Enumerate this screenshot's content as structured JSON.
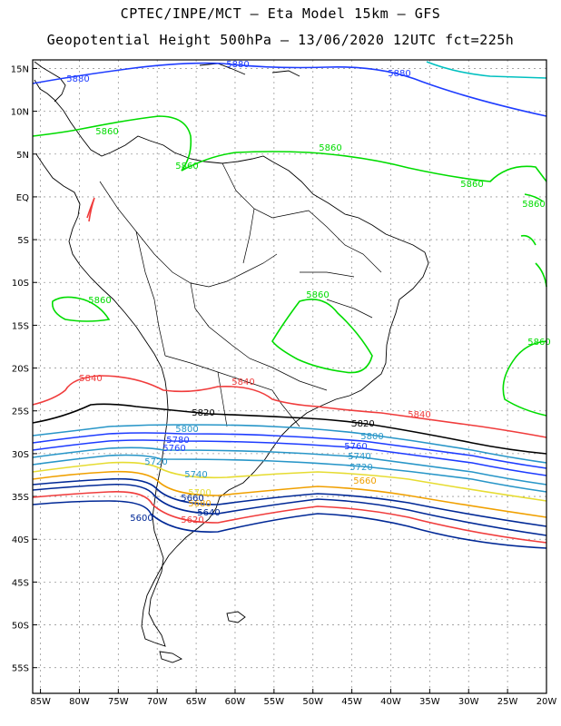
{
  "title": {
    "line1": "CPTEC/INPE/MCT –  Eta Model 15km – GFS",
    "line2": "Geopotential Height 500hPa – 13/06/2020 12UTC fct=225h"
  },
  "axes": {
    "lat_labels": [
      "15N",
      "10N",
      "5N",
      "EQ",
      "5S",
      "10S",
      "15S",
      "20S",
      "25S",
      "30S",
      "35S",
      "40S",
      "45S",
      "50S",
      "55S"
    ],
    "lon_labels": [
      "85W",
      "80W",
      "75W",
      "70W",
      "65W",
      "60W",
      "55W",
      "50W",
      "45W",
      "40W",
      "35W",
      "30W",
      "25W",
      "20W"
    ]
  },
  "chart_data": {
    "type": "contour-map",
    "variable": "Geopotential Height 500hPa",
    "lat_range": [
      -58,
      16
    ],
    "lon_range": [
      -86,
      -20
    ],
    "grid": true,
    "contours": [
      {
        "value": 5880,
        "color": "#00c0c0"
      },
      {
        "value": 5880,
        "color": "#1e3cff"
      },
      {
        "value": 5860,
        "color": "#00dc00"
      },
      {
        "value": 5840,
        "color": "#f03c3c"
      },
      {
        "value": 5820,
        "color": "#000000"
      },
      {
        "value": 5800,
        "color": "#2896c8"
      },
      {
        "value": 5780,
        "color": "#1e3cff"
      },
      {
        "value": 5760,
        "color": "#1e3cff"
      },
      {
        "value": 5740,
        "color": "#2896c8"
      },
      {
        "value": 5720,
        "color": "#2896c8"
      },
      {
        "value": 5700,
        "color": "#e6dc32"
      },
      {
        "value": 5680,
        "color": "#f0a000"
      },
      {
        "value": 5660,
        "color": "#002896"
      },
      {
        "value": 5640,
        "color": "#002896"
      },
      {
        "value": 5620,
        "color": "#f03c3c"
      },
      {
        "value": 5600,
        "color": "#002896"
      }
    ],
    "labels": [
      {
        "text": "5880",
        "color": "#1e3cff"
      },
      {
        "text": "5880",
        "color": "#1e3cff"
      },
      {
        "text": "5880",
        "color": "#1e3cff"
      },
      {
        "text": "5860",
        "color": "#00dc00"
      },
      {
        "text": "5860",
        "color": "#00dc00"
      },
      {
        "text": "5860",
        "color": "#00dc00"
      },
      {
        "text": "5860",
        "color": "#00dc00"
      },
      {
        "text": "5860",
        "color": "#00dc00"
      },
      {
        "text": "5860",
        "color": "#00dc00"
      },
      {
        "text": "5860",
        "color": "#00dc00"
      },
      {
        "text": "5860",
        "color": "#00dc00"
      },
      {
        "text": "5840",
        "color": "#f03c3c"
      },
      {
        "text": "5840",
        "color": "#f03c3c"
      },
      {
        "text": "5840",
        "color": "#f03c3c"
      },
      {
        "text": "5820",
        "color": "#000000"
      },
      {
        "text": "5820",
        "color": "#000000"
      },
      {
        "text": "5800",
        "color": "#2896c8"
      },
      {
        "text": "5800",
        "color": "#2896c8"
      },
      {
        "text": "5780",
        "color": "#1e3cff"
      },
      {
        "text": "5760",
        "color": "#1e3cff"
      },
      {
        "text": "5760",
        "color": "#1e3cff"
      },
      {
        "text": "5740",
        "color": "#2896c8"
      },
      {
        "text": "5740",
        "color": "#2896c8"
      },
      {
        "text": "5720",
        "color": "#2896c8"
      },
      {
        "text": "5720",
        "color": "#2896c8"
      },
      {
        "text": "5700",
        "color": "#e6dc32"
      },
      {
        "text": "5680",
        "color": "#f0a000"
      },
      {
        "text": "5660",
        "color": "#f0a000"
      },
      {
        "text": "5660",
        "color": "#002896"
      },
      {
        "text": "5640",
        "color": "#002896"
      },
      {
        "text": "5620",
        "color": "#f03c3c"
      },
      {
        "text": "5600",
        "color": "#002896"
      }
    ]
  }
}
